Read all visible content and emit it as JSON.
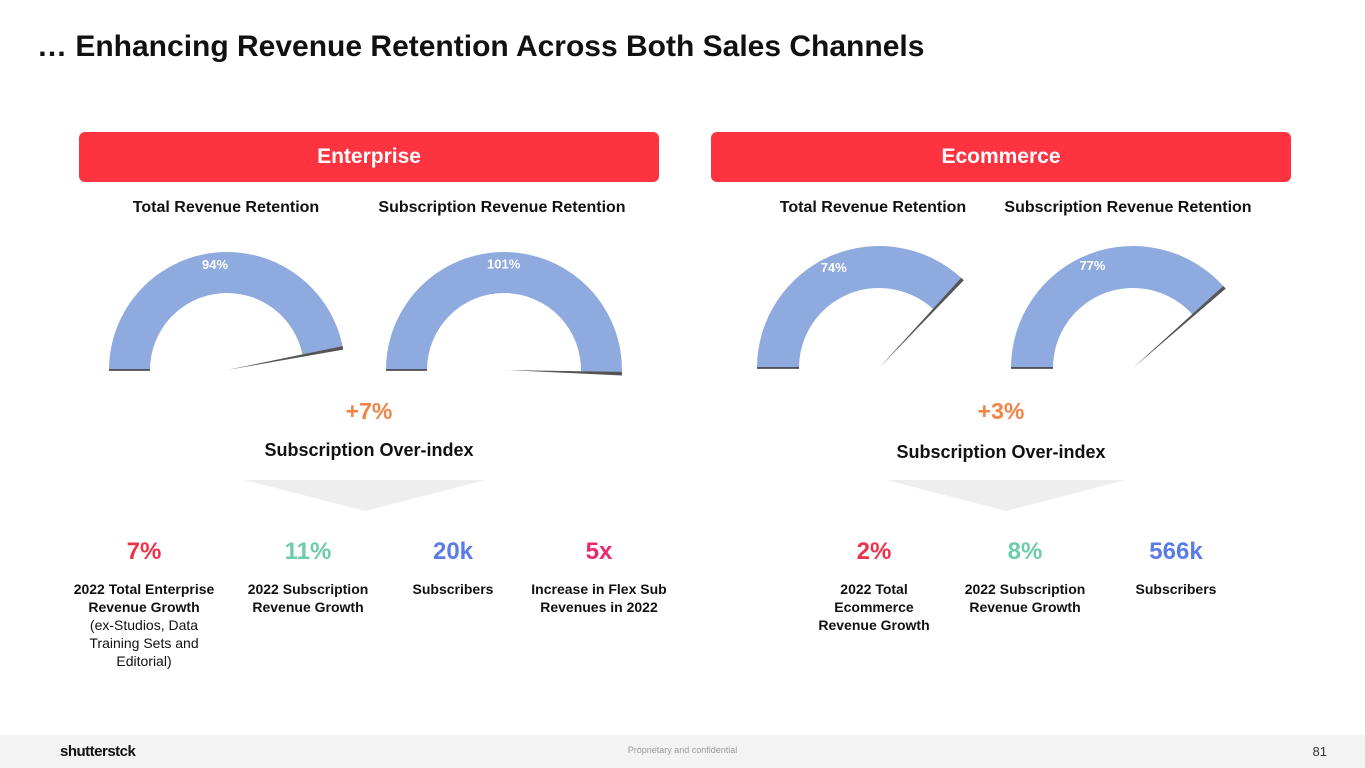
{
  "title": "… Enhancing Revenue Retention Across Both Sales Channels",
  "colors": {
    "brand_red": "#fd3340",
    "gauge_blue": "#8eaadf",
    "delta_orange": "#f28345",
    "stat_red": "#ee3348",
    "stat_teal": "#6fcca9",
    "stat_blue": "#5b7be8",
    "stat_pink": "#ec2a6a"
  },
  "enterprise": {
    "banner": "Enterprise",
    "total_label": "Total Revenue Retention",
    "sub_label": "Subscription Revenue Retention",
    "total_gauge": "94%",
    "total_value": 94,
    "sub_gauge": "101%",
    "sub_value": 101,
    "delta": "+7%",
    "over_index": "Subscription Over-index",
    "stats": [
      {
        "value": "7%",
        "label": "2022 Total Enterprise Revenue Growth",
        "note": "(ex-Studios, Data Training Sets and Editorial)"
      },
      {
        "value": "11%",
        "label": "2022 Subscription Revenue Growth"
      },
      {
        "value": "20k",
        "label": "Subscribers"
      },
      {
        "value": "5x",
        "label": "Increase in Flex Sub Revenues in 2022"
      }
    ]
  },
  "ecommerce": {
    "banner": "Ecommerce",
    "total_label": "Total Revenue Retention",
    "sub_label": "Subscription Revenue Retention",
    "total_gauge": "74%",
    "total_value": 74,
    "sub_gauge": "77%",
    "sub_value": 77,
    "delta": "+3%",
    "over_index": "Subscription Over-index",
    "stats": [
      {
        "value": "2%",
        "label": "2022 Total Ecommerce Revenue Growth"
      },
      {
        "value": "8%",
        "label": "2022 Subscription Revenue Growth"
      },
      {
        "value": "566k",
        "label": "Subscribers"
      }
    ]
  },
  "footer": {
    "logo": "shutterstck",
    "confidential": "Proprietary and confidential",
    "page": "81"
  }
}
